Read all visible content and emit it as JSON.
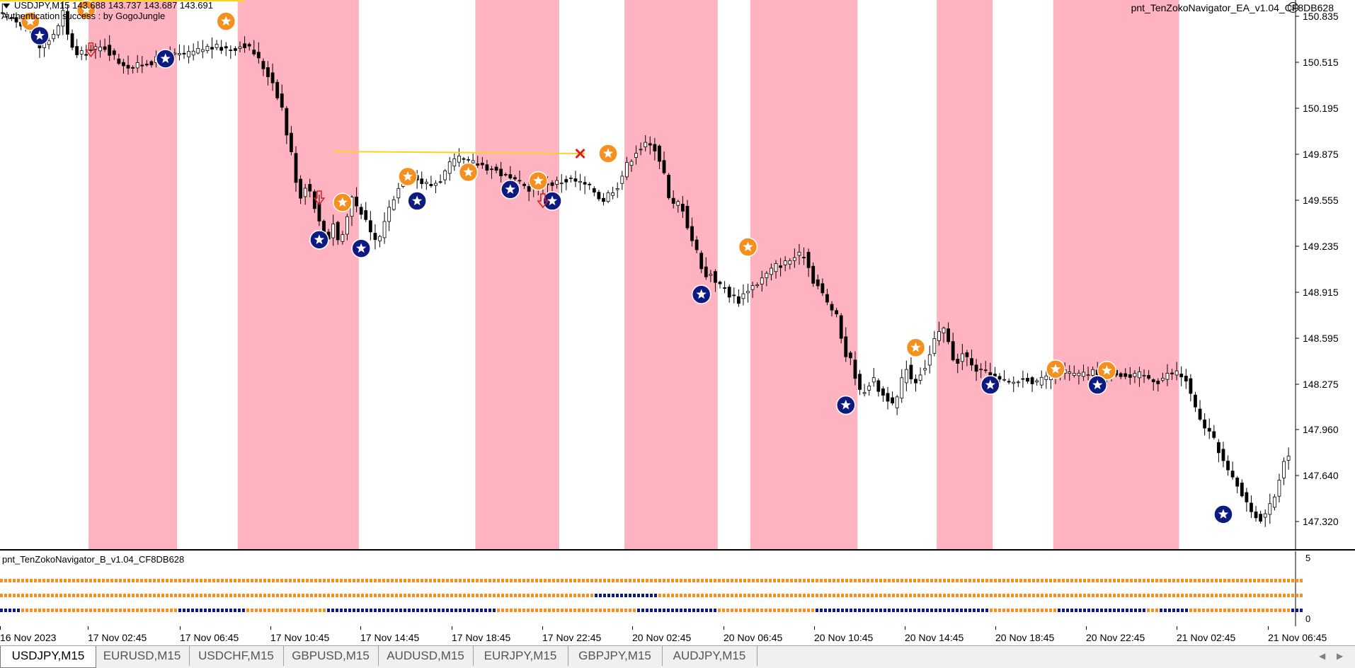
{
  "window": {
    "symbol_line": "USDJPY,M15  143.688 143.737 143.687 143.691",
    "auth_message": "Authentication success : by GogoJungle",
    "ea_label": "pnt_TenZokoNavigator_EA_v1.04_CF8DB628",
    "smiley_icon": "smiley-icon",
    "price_axis": [
      "150.835",
      "150.515",
      "150.195",
      "149.875",
      "149.555",
      "149.235",
      "148.915",
      "148.595",
      "148.275",
      "147.960",
      "147.640",
      "147.320"
    ],
    "time_axis": [
      "16 Nov 2023",
      "17 Nov 02:45",
      "17 Nov 06:45",
      "17 Nov 10:45",
      "17 Nov 14:45",
      "17 Nov 18:45",
      "17 Nov 22:45",
      "20 Nov 02:45",
      "20 Nov 06:45",
      "20 Nov 10:45",
      "20 Nov 14:45",
      "20 Nov 18:45",
      "20 Nov 22:45",
      "21 Nov 02:45",
      "21 Nov 06:45"
    ]
  },
  "subwindow": {
    "title": "pnt_TenZokoNavigator_B_v1.04_CF8DB628",
    "axis_top": "5",
    "axis_bottom": "0"
  },
  "tabs": [
    {
      "label": "USDJPY,M15",
      "active": true
    },
    {
      "label": "EURUSD,M15",
      "active": false
    },
    {
      "label": "USDCHF,M15",
      "active": false
    },
    {
      "label": "GBPUSD,M15",
      "active": false
    },
    {
      "label": "AUDUSD,M15",
      "active": false
    },
    {
      "label": "EURJPY,M15",
      "active": false
    },
    {
      "label": "GBPJPY,M15",
      "active": false
    },
    {
      "label": "AUDJPY,M15",
      "active": false
    }
  ],
  "colors": {
    "session_band": "#ffb3c0",
    "buy_marker": "#f5901e",
    "sell_marker": "#0d1a80",
    "level_line": "#ffd21f",
    "arrow": "#e31a1c"
  },
  "chart_data": {
    "type": "candlestick",
    "symbol": "USDJPY",
    "timeframe": "M15",
    "ylim": [
      147.16,
      150.98
    ],
    "path": [
      [
        0,
        150.84
      ],
      [
        3,
        150.8
      ],
      [
        6,
        150.76
      ],
      [
        8,
        150.62
      ],
      [
        10,
        150.67
      ],
      [
        12,
        150.76
      ],
      [
        13,
        150.86
      ],
      [
        14,
        150.7
      ],
      [
        16,
        150.56
      ],
      [
        19,
        150.6
      ],
      [
        22,
        150.62
      ],
      [
        25,
        150.52
      ],
      [
        28,
        150.48
      ],
      [
        32,
        150.52
      ],
      [
        36,
        150.56
      ],
      [
        40,
        150.57
      ],
      [
        44,
        150.62
      ],
      [
        49,
        150.61
      ],
      [
        52,
        150.64
      ],
      [
        54,
        150.58
      ],
      [
        56,
        150.48
      ],
      [
        58,
        150.38
      ],
      [
        60,
        150.2
      ],
      [
        61,
        150.02
      ],
      [
        62,
        149.88
      ],
      [
        63,
        149.7
      ],
      [
        64,
        149.58
      ],
      [
        65,
        149.66
      ],
      [
        66,
        149.62
      ],
      [
        67,
        149.52
      ],
      [
        68,
        149.4
      ],
      [
        69,
        149.34
      ],
      [
        70,
        149.3
      ],
      [
        71,
        149.4
      ],
      [
        72,
        149.28
      ],
      [
        73,
        149.32
      ],
      [
        74,
        149.44
      ],
      [
        75,
        149.58
      ],
      [
        76,
        149.52
      ],
      [
        77,
        149.48
      ],
      [
        78,
        149.4
      ],
      [
        79,
        149.32
      ],
      [
        80,
        149.28
      ],
      [
        81,
        149.3
      ],
      [
        82,
        149.42
      ],
      [
        84,
        149.58
      ],
      [
        86,
        149.7
      ],
      [
        88,
        149.72
      ],
      [
        90,
        149.68
      ],
      [
        92,
        149.66
      ],
      [
        94,
        149.7
      ],
      [
        96,
        149.8
      ],
      [
        98,
        149.84
      ],
      [
        100,
        149.82
      ],
      [
        103,
        149.8
      ],
      [
        106,
        149.76
      ],
      [
        108,
        149.72
      ],
      [
        110,
        149.68
      ],
      [
        113,
        149.64
      ],
      [
        116,
        149.66
      ],
      [
        119,
        149.68
      ],
      [
        122,
        149.7
      ],
      [
        125,
        149.66
      ],
      [
        127,
        149.62
      ],
      [
        128,
        149.58
      ],
      [
        129,
        149.56
      ],
      [
        130,
        149.6
      ],
      [
        132,
        149.66
      ],
      [
        134,
        149.8
      ],
      [
        136,
        149.9
      ],
      [
        138,
        149.94
      ],
      [
        140,
        149.92
      ],
      [
        141,
        149.84
      ],
      [
        142,
        149.74
      ],
      [
        143,
        149.56
      ],
      [
        144,
        149.52
      ],
      [
        145,
        149.54
      ],
      [
        146,
        149.5
      ],
      [
        147,
        149.38
      ],
      [
        148,
        149.28
      ],
      [
        149,
        149.2
      ],
      [
        150,
        149.1
      ],
      [
        151,
        149.02
      ],
      [
        152,
        149.05
      ],
      [
        153,
        149.0
      ],
      [
        154,
        148.96
      ],
      [
        155,
        148.94
      ],
      [
        156,
        148.9
      ],
      [
        157,
        148.88
      ],
      [
        158,
        148.86
      ],
      [
        160,
        148.94
      ],
      [
        162,
        148.98
      ],
      [
        164,
        149.04
      ],
      [
        166,
        149.1
      ],
      [
        168,
        149.12
      ],
      [
        170,
        149.16
      ],
      [
        172,
        149.18
      ],
      [
        174,
        149.0
      ],
      [
        175,
        148.96
      ],
      [
        176,
        148.9
      ],
      [
        177,
        148.84
      ],
      [
        178,
        148.8
      ],
      [
        179,
        148.74
      ],
      [
        180,
        148.6
      ],
      [
        181,
        148.48
      ],
      [
        182,
        148.44
      ],
      [
        183,
        148.34
      ],
      [
        184,
        148.22
      ],
      [
        185,
        148.24
      ],
      [
        186,
        148.28
      ],
      [
        187,
        148.3
      ],
      [
        188,
        148.24
      ],
      [
        189,
        148.2
      ],
      [
        190,
        148.18
      ],
      [
        191,
        148.12
      ],
      [
        192,
        148.18
      ],
      [
        193,
        148.3
      ],
      [
        194,
        148.4
      ],
      [
        195,
        148.32
      ],
      [
        196,
        148.3
      ],
      [
        197,
        148.36
      ],
      [
        198,
        148.4
      ],
      [
        199,
        148.48
      ],
      [
        200,
        148.58
      ],
      [
        201,
        148.62
      ],
      [
        202,
        148.66
      ],
      [
        203,
        148.56
      ],
      [
        204,
        148.46
      ],
      [
        205,
        148.44
      ],
      [
        206,
        148.48
      ],
      [
        207,
        148.46
      ],
      [
        208,
        148.4
      ],
      [
        209,
        148.38
      ],
      [
        210,
        148.36
      ],
      [
        212,
        148.34
      ],
      [
        214,
        148.3
      ],
      [
        216,
        148.28
      ],
      [
        218,
        148.3
      ],
      [
        220,
        148.32
      ],
      [
        222,
        148.28
      ],
      [
        224,
        148.32
      ],
      [
        226,
        148.36
      ],
      [
        228,
        148.36
      ],
      [
        230,
        148.34
      ],
      [
        232,
        148.34
      ],
      [
        234,
        148.36
      ],
      [
        236,
        148.36
      ],
      [
        238,
        148.38
      ],
      [
        240,
        148.34
      ],
      [
        242,
        148.32
      ],
      [
        244,
        148.34
      ],
      [
        246,
        148.32
      ],
      [
        248,
        148.3
      ],
      [
        250,
        148.34
      ],
      [
        252,
        148.36
      ],
      [
        254,
        148.3
      ],
      [
        255,
        148.2
      ],
      [
        256,
        148.1
      ],
      [
        257,
        148.02
      ],
      [
        258,
        147.98
      ],
      [
        259,
        147.94
      ],
      [
        260,
        147.88
      ],
      [
        261,
        147.82
      ],
      [
        262,
        147.74
      ],
      [
        263,
        147.66
      ],
      [
        264,
        147.62
      ],
      [
        265,
        147.58
      ],
      [
        266,
        147.52
      ],
      [
        267,
        147.44
      ],
      [
        268,
        147.4
      ],
      [
        269,
        147.36
      ],
      [
        270,
        147.34
      ],
      [
        271,
        147.38
      ],
      [
        272,
        147.42
      ],
      [
        273,
        147.5
      ],
      [
        274,
        147.62
      ],
      [
        275,
        147.76
      ],
      [
        276,
        147.8
      ]
    ],
    "session_bands": [
      [
        19,
        38
      ],
      [
        51,
        77
      ],
      [
        102,
        120
      ],
      [
        134,
        154
      ],
      [
        161,
        184
      ],
      [
        201,
        213
      ],
      [
        226,
        253
      ]
    ],
    "buy_markers": [
      [
        6,
        150.8
      ],
      [
        18,
        150.88
      ],
      [
        48,
        150.8
      ],
      [
        73,
        149.54
      ],
      [
        87,
        149.72
      ],
      [
        100,
        149.75
      ],
      [
        115,
        149.69
      ],
      [
        130,
        149.88
      ],
      [
        160,
        149.23
      ],
      [
        196,
        148.53
      ],
      [
        226,
        148.38
      ],
      [
        237,
        148.37
      ]
    ],
    "sell_markers": [
      [
        8,
        150.7
      ],
      [
        35,
        150.54
      ],
      [
        68,
        149.28
      ],
      [
        77,
        149.22
      ],
      [
        89,
        149.55
      ],
      [
        109,
        149.63
      ],
      [
        118,
        149.55
      ],
      [
        150,
        148.9
      ],
      [
        181,
        148.13
      ],
      [
        212,
        148.27
      ],
      [
        235,
        148.27
      ],
      [
        262,
        147.37
      ]
    ],
    "level_line": {
      "from": 71,
      "to": 125,
      "price": 149.88
    },
    "arrows": [
      [
        19,
        150.6
      ],
      [
        68,
        149.57
      ],
      [
        116,
        149.55
      ],
      [
        124,
        149.88
      ]
    ]
  },
  "indicator_rows": [
    {
      "color_a": "#f5901e",
      "color_b": "#0d1a80",
      "alt_ranges": []
    },
    {
      "color_a": "#f5901e",
      "color_b": "#0d1a80",
      "alt_ranges": [
        [
          836,
          930
        ]
      ]
    },
    {
      "color_a": "#f5901e",
      "color_b": "#0d1a80",
      "alt_ranges": [
        [
          0,
          30
        ],
        [
          250,
          345
        ],
        [
          460,
          700
        ],
        [
          900,
          1010
        ],
        [
          1150,
          1395
        ],
        [
          1490,
          1615
        ],
        [
          1635,
          1675
        ],
        [
          1820,
          1838
        ]
      ]
    }
  ]
}
